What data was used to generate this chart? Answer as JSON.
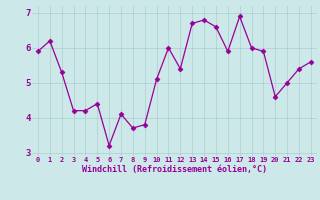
{
  "x": [
    0,
    1,
    2,
    3,
    4,
    5,
    6,
    7,
    8,
    9,
    10,
    11,
    12,
    13,
    14,
    15,
    16,
    17,
    18,
    19,
    20,
    21,
    22,
    23
  ],
  "y": [
    5.9,
    6.2,
    5.3,
    4.2,
    4.2,
    4.4,
    3.2,
    4.1,
    3.7,
    3.8,
    5.1,
    6.0,
    5.4,
    6.7,
    6.8,
    6.6,
    5.9,
    6.9,
    6.0,
    5.9,
    4.6,
    5.0,
    5.4,
    5.6
  ],
  "line_color": "#990099",
  "marker": "D",
  "marker_size": 2.5,
  "bg_color": "#cce8e8",
  "grid_color": "#aacfcf",
  "xlabel": "Windchill (Refroidissement éolien,°C)",
  "xlabel_color": "#990099",
  "tick_color": "#990099",
  "ylim": [
    2.9,
    7.2
  ],
  "xlim": [
    -0.5,
    23.5
  ],
  "yticks": [
    3,
    4,
    5,
    6,
    7
  ],
  "xticks": [
    0,
    1,
    2,
    3,
    4,
    5,
    6,
    7,
    8,
    9,
    10,
    11,
    12,
    13,
    14,
    15,
    16,
    17,
    18,
    19,
    20,
    21,
    22,
    23
  ],
  "xtick_labels": [
    "0",
    "1",
    "2",
    "3",
    "4",
    "5",
    "6",
    "7",
    "8",
    "9",
    "10",
    "11",
    "12",
    "13",
    "14",
    "15",
    "16",
    "17",
    "18",
    "19",
    "20",
    "21",
    "22",
    "23"
  ]
}
